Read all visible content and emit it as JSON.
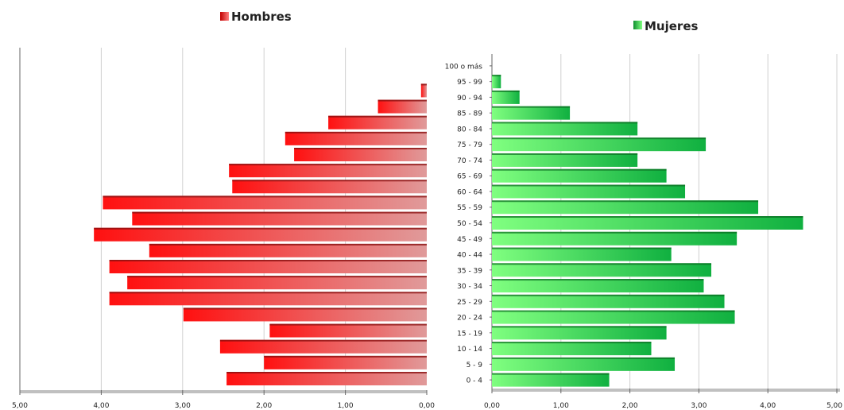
{
  "chart_data": [
    {
      "type": "bar",
      "orientation": "horizontal",
      "direction": "right-to-left",
      "legend_label": "Hombres",
      "legend_color": "#ff3030",
      "bar_gradient": [
        "#ff1010",
        "#e09a9a"
      ],
      "categories": [
        "0 - 4",
        "5 - 9",
        "10 - 14",
        "15 - 19",
        "20 - 24",
        "25 - 29",
        "30 - 34",
        "35 - 39",
        "40 - 44",
        "45 - 49",
        "50 - 54",
        "55 - 59",
        "60 - 64",
        "65 - 69",
        "70 - 74",
        "75 - 79",
        "80 - 84",
        "85 - 89",
        "90 - 94",
        "95 - 99",
        "100 o más"
      ],
      "values": [
        2.46,
        2.0,
        2.54,
        1.93,
        2.99,
        3.9,
        3.68,
        3.9,
        3.41,
        4.09,
        3.62,
        3.98,
        2.39,
        2.43,
        1.63,
        1.74,
        1.21,
        0.6,
        0.07,
        0,
        0
      ],
      "xlim": [
        0,
        5
      ],
      "ticks": [
        "5,00",
        "4,00",
        "3,00",
        "2,00",
        "1,00",
        "0,00"
      ],
      "grid": true
    },
    {
      "type": "bar",
      "orientation": "horizontal",
      "direction": "left-to-right",
      "legend_label": "Mujeres",
      "legend_color": "#40e060",
      "bar_gradient": [
        "#80ff80",
        "#10b040"
      ],
      "categories": [
        "0 - 4",
        "5 - 9",
        "10 - 14",
        "15 - 19",
        "20 - 24",
        "25 - 29",
        "30 - 34",
        "35 - 39",
        "40 - 44",
        "45 - 49",
        "50 - 54",
        "55 - 59",
        "60 - 64",
        "65 - 69",
        "70 - 74",
        "75 - 79",
        "80 - 84",
        "85 - 89",
        "90 - 94",
        "95 - 99",
        "100 o más"
      ],
      "values": [
        1.7,
        2.65,
        2.31,
        2.53,
        3.52,
        3.37,
        3.07,
        3.18,
        2.6,
        3.55,
        4.51,
        3.86,
        2.8,
        2.53,
        2.11,
        3.1,
        2.11,
        1.13,
        0.4,
        0.13,
        0
      ],
      "xlim": [
        0,
        5
      ],
      "ticks": [
        "0,00",
        "1,00",
        "2,00",
        "3,00",
        "4,00",
        "5,00"
      ],
      "grid": true
    }
  ]
}
